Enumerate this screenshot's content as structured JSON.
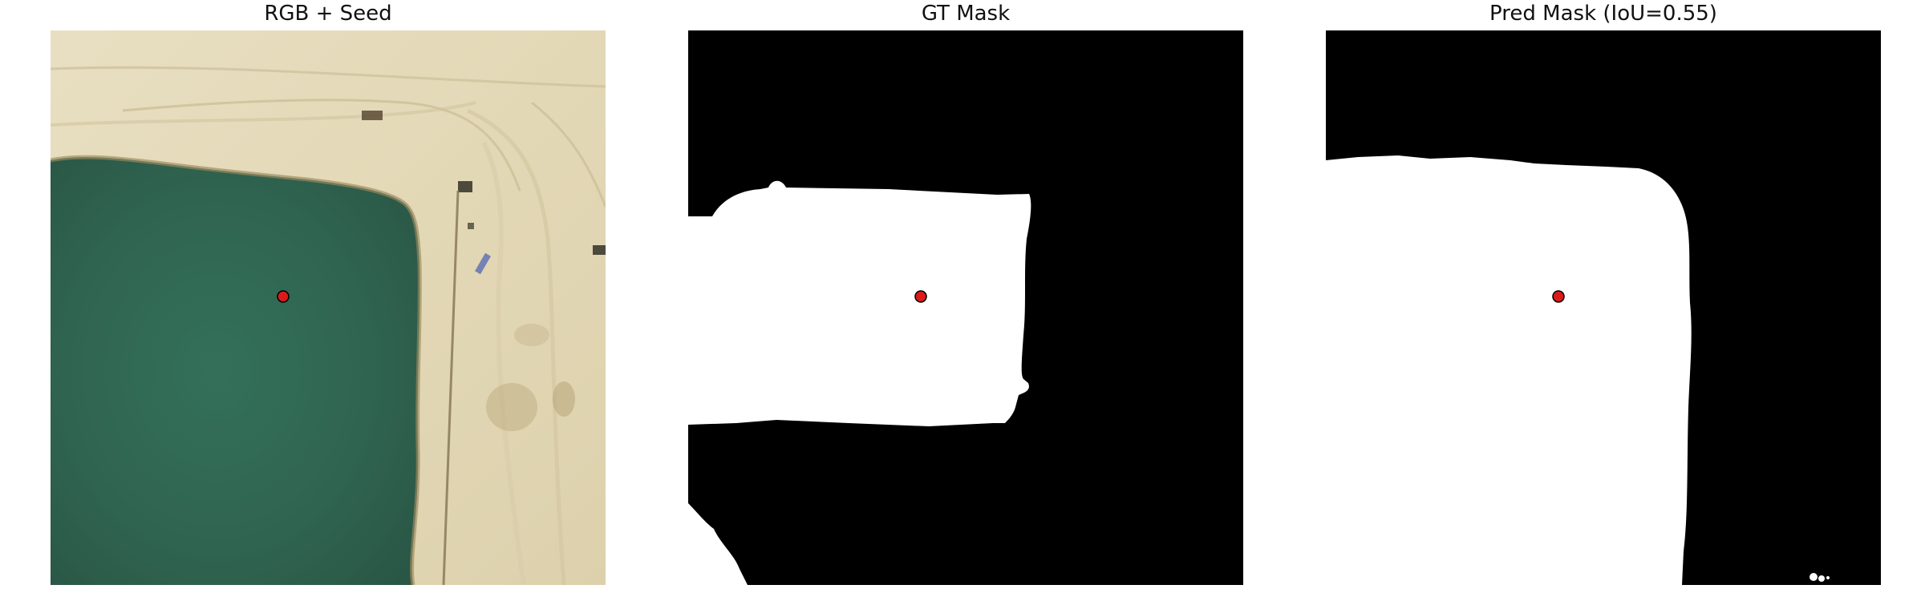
{
  "panels": [
    {
      "title": "RGB + Seed"
    },
    {
      "title": "GT Mask"
    },
    {
      "title": "Pred Mask (IoU=0.55)"
    }
  ],
  "colors": {
    "seed_fill": "#dd1a1a",
    "seed_stroke": "#000000",
    "water": "#2f5f4c",
    "sand": "#e2d8b8",
    "mask_fg": "#ffffff",
    "mask_bg": "#000000"
  }
}
